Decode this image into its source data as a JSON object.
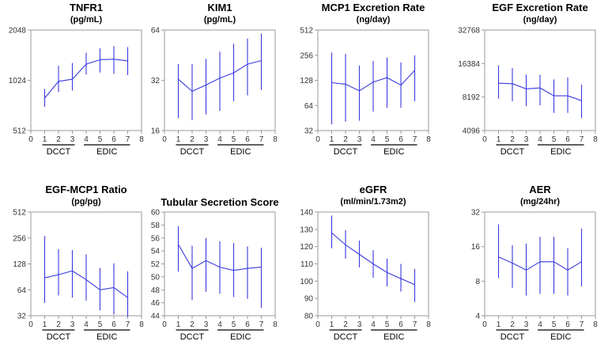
{
  "chart_data": [
    {
      "type": "line",
      "title": "TNFR1",
      "subtitle": "(pg/mL)",
      "scale": "log2",
      "ylim": [
        512,
        2048
      ],
      "yticks": [
        512,
        1024,
        2048
      ],
      "ytick_labels": [
        "512",
        "1024",
        "2048"
      ],
      "xlim": [
        0,
        8
      ],
      "xticks": [
        0,
        1,
        2,
        3,
        4,
        5,
        6,
        7,
        8
      ],
      "xtick_labels": [
        "0",
        "1",
        "2",
        "3",
        "4",
        "5",
        "6",
        "7",
        "8"
      ],
      "groups": [
        {
          "label": "DCCT",
          "from": 1,
          "to": 3
        },
        {
          "label": "EDIC",
          "from": 4,
          "to": 7
        }
      ],
      "x": [
        1,
        2,
        3,
        4,
        5,
        6,
        7
      ],
      "values": [
        800,
        1010,
        1040,
        1280,
        1360,
        1370,
        1340
      ],
      "lower": [
        710,
        870,
        890,
        1110,
        1140,
        1120,
        1100
      ],
      "upper": [
        910,
        1250,
        1300,
        1500,
        1590,
        1640,
        1620
      ]
    },
    {
      "type": "line",
      "title": "KIM1",
      "subtitle": "(pg/mL)",
      "scale": "log2",
      "ylim": [
        16,
        64
      ],
      "yticks": [
        16,
        32,
        64
      ],
      "ytick_labels": [
        "16",
        "32",
        "64"
      ],
      "xlim": [
        0,
        8
      ],
      "xticks": [
        0,
        1,
        2,
        3,
        4,
        5,
        6,
        7,
        8
      ],
      "xtick_labels": [
        "0",
        "1",
        "2",
        "3",
        "4",
        "5",
        "6",
        "7",
        "8"
      ],
      "groups": [
        {
          "label": "DCCT",
          "from": 1,
          "to": 3
        },
        {
          "label": "EDIC",
          "from": 4,
          "to": 7
        }
      ],
      "x": [
        1,
        2,
        3,
        4,
        5,
        6,
        7
      ],
      "values": [
        32.5,
        27.5,
        30,
        33,
        35.5,
        40,
        42
      ],
      "lower": [
        19,
        18.5,
        20,
        21,
        24,
        26,
        28
      ],
      "upper": [
        40,
        40,
        43,
        47.5,
        53,
        57,
        61
      ]
    },
    {
      "type": "line",
      "title": "MCP1 Excretion Rate",
      "subtitle": "(ng/day)",
      "scale": "log2",
      "ylim": [
        32,
        512
      ],
      "yticks": [
        32,
        64,
        128,
        256,
        512
      ],
      "ytick_labels": [
        "32",
        "64",
        "128",
        "256",
        "512"
      ],
      "xlim": [
        0,
        8
      ],
      "xticks": [
        0,
        1,
        2,
        3,
        4,
        5,
        6,
        7,
        8
      ],
      "xtick_labels": [
        "0",
        "1",
        "2",
        "3",
        "4",
        "5",
        "6",
        "7",
        "8"
      ],
      "groups": [
        {
          "label": "DCCT",
          "from": 1,
          "to": 3
        },
        {
          "label": "EDIC",
          "from": 4,
          "to": 7
        }
      ],
      "x": [
        1,
        2,
        3,
        4,
        5,
        6,
        7
      ],
      "values": [
        120,
        115,
        96,
        122,
        138,
        112,
        168
      ],
      "lower": [
        38,
        41,
        42,
        54,
        60,
        60,
        72
      ],
      "upper": [
        275,
        265,
        192,
        218,
        240,
        210,
        255
      ]
    },
    {
      "type": "line",
      "title": "EGF Excretion Rate",
      "subtitle": "(ng/day)",
      "scale": "log2",
      "ylim": [
        4096,
        32768
      ],
      "yticks": [
        4096,
        8192,
        16384,
        32768
      ],
      "ytick_labels": [
        "4096",
        "8192",
        "16384",
        "32768"
      ],
      "xlim": [
        0,
        8
      ],
      "xticks": [
        0,
        1,
        2,
        3,
        4,
        5,
        6,
        7,
        8
      ],
      "xtick_labels": [
        "0",
        "1",
        "2",
        "3",
        "4",
        "5",
        "6",
        "7",
        "8"
      ],
      "groups": [
        {
          "label": "DCCT",
          "from": 1,
          "to": 3
        },
        {
          "label": "EDIC",
          "from": 4,
          "to": 7
        }
      ],
      "x": [
        1,
        2,
        3,
        4,
        5,
        6,
        7
      ],
      "values": [
        10900,
        10800,
        9700,
        9900,
        8400,
        8400,
        7600
      ],
      "lower": [
        7900,
        7500,
        6800,
        6900,
        5900,
        5900,
        5300
      ],
      "upper": [
        15800,
        14900,
        13000,
        13000,
        11800,
        12300,
        10600
      ]
    },
    {
      "type": "line",
      "title": "EGF-MCP1 Ratio",
      "subtitle": "(pg/pg)",
      "scale": "log2",
      "ylim": [
        32,
        512
      ],
      "yticks": [
        32,
        64,
        128,
        256,
        512
      ],
      "ytick_labels": [
        "32",
        "64",
        "128",
        "256",
        "512"
      ],
      "xlim": [
        0,
        8
      ],
      "xticks": [
        0,
        1,
        2,
        3,
        4,
        5,
        6,
        7,
        8
      ],
      "xtick_labels": [
        "0",
        "1",
        "2",
        "3",
        "4",
        "5",
        "6",
        "7",
        "8"
      ],
      "groups": [
        {
          "label": "DCCT",
          "from": 1,
          "to": 3
        },
        {
          "label": "EDIC",
          "from": 4,
          "to": 7
        }
      ],
      "x": [
        1,
        2,
        3,
        4,
        5,
        6,
        7
      ],
      "values": [
        88,
        96,
        106,
        84,
        64,
        68,
        52
      ],
      "lower": [
        45,
        55,
        52,
        48,
        37,
        33,
        31
      ],
      "upper": [
        270,
        190,
        185,
        165,
        115,
        130,
        105
      ]
    },
    {
      "type": "line",
      "title": "Tubular Secretion Score",
      "subtitle": "",
      "scale": "linear",
      "ylim": [
        44,
        60
      ],
      "yticks": [
        44,
        46,
        48,
        50,
        52,
        54,
        56,
        58,
        60
      ],
      "ytick_labels": [
        "44",
        "46",
        "48",
        "50",
        "52",
        "54",
        "56",
        "58",
        "60"
      ],
      "xlim": [
        0,
        8
      ],
      "xticks": [
        0,
        1,
        2,
        3,
        4,
        5,
        6,
        7,
        8
      ],
      "xtick_labels": [
        "0",
        "1",
        "2",
        "3",
        "4",
        "5",
        "6",
        "7",
        "8"
      ],
      "groups": [
        {
          "label": "DCCT",
          "from": 1,
          "to": 3
        },
        {
          "label": "EDIC",
          "from": 4,
          "to": 7
        }
      ],
      "x": [
        1,
        2,
        3,
        4,
        5,
        6,
        7
      ],
      "values": [
        55,
        51.3,
        52.5,
        51.5,
        51,
        51.3,
        51.5
      ],
      "lower": [
        50.8,
        46.4,
        47.7,
        47.4,
        46.9,
        46.6,
        45.2
      ],
      "upper": [
        57.8,
        54.8,
        56,
        55.5,
        55.2,
        54.7,
        54.5
      ]
    },
    {
      "type": "line",
      "title": "eGFR",
      "subtitle": "(ml/min/1.73m2)",
      "scale": "linear",
      "ylim": [
        80,
        140
      ],
      "yticks": [
        80,
        90,
        100,
        110,
        120,
        130,
        140
      ],
      "ytick_labels": [
        "80",
        "90",
        "100",
        "110",
        "120",
        "130",
        "140"
      ],
      "xlim": [
        0,
        8
      ],
      "xticks": [
        0,
        1,
        2,
        3,
        4,
        5,
        6,
        7,
        8
      ],
      "xtick_labels": [
        "0",
        "1",
        "2",
        "3",
        "4",
        "5",
        "6",
        "7",
        "8"
      ],
      "groups": [
        {
          "label": "DCCT",
          "from": 1,
          "to": 3
        },
        {
          "label": "EDIC",
          "from": 4,
          "to": 7
        }
      ],
      "x": [
        1,
        2,
        3,
        4,
        5,
        6,
        7
      ],
      "values": [
        128,
        121,
        115.5,
        110,
        105,
        101.5,
        98
      ],
      "lower": [
        119,
        113,
        108,
        102,
        97,
        94,
        88
      ],
      "upper": [
        138,
        129.5,
        123.5,
        118,
        113,
        110,
        107
      ]
    },
    {
      "type": "line",
      "title": "AER",
      "subtitle": "(mg/24hr)",
      "scale": "log2",
      "ylim": [
        4,
        32
      ],
      "yticks": [
        4,
        8,
        16,
        32
      ],
      "ytick_labels": [
        "4",
        "8",
        "16",
        "32"
      ],
      "xlim": [
        0,
        8
      ],
      "xticks": [
        0,
        1,
        2,
        3,
        4,
        5,
        6,
        7,
        8
      ],
      "xtick_labels": [
        "0",
        "1",
        "2",
        "3",
        "4",
        "5",
        "6",
        "7",
        "8"
      ],
      "groups": [
        {
          "label": "DCCT",
          "from": 1,
          "to": 3
        },
        {
          "label": "EDIC",
          "from": 4,
          "to": 7
        }
      ],
      "x": [
        1,
        2,
        3,
        4,
        5,
        6,
        7
      ],
      "values": [
        13,
        11.5,
        10,
        11.8,
        11.8,
        10,
        11.8
      ],
      "lower": [
        8.5,
        7,
        6,
        6.2,
        6.2,
        6,
        7.2
      ],
      "upper": [
        25,
        16.5,
        17,
        19.5,
        19.5,
        15.5,
        23
      ]
    }
  ]
}
